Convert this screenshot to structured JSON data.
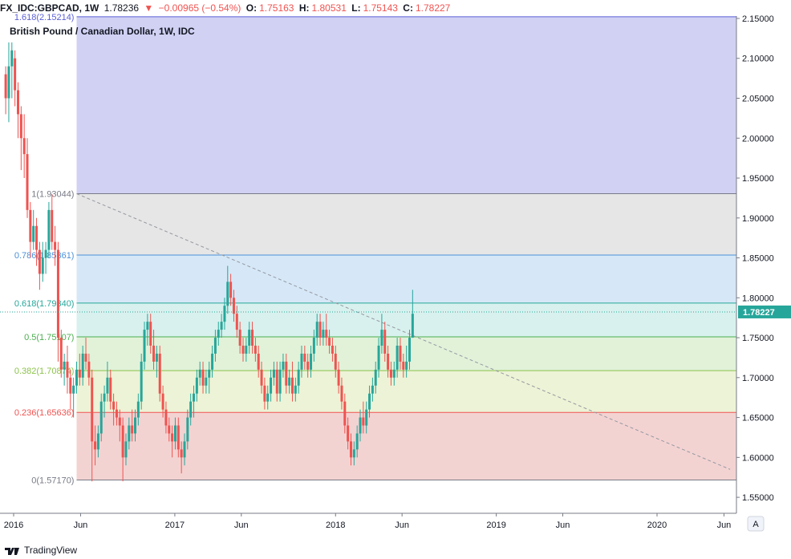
{
  "header": {
    "symbol": "FX_IDC:GBPCAD, 1W",
    "last": "1.78236",
    "change": "−0.00965 (−0.54%)",
    "o_label": "O:",
    "o_value": "1.75163",
    "h_label": "H:",
    "h_value": "1.80531",
    "l_label": "L:",
    "l_value": "1.75143",
    "c_label": "C:",
    "c_value": "1.78227",
    "down_arrow": "▼"
  },
  "footer": {
    "brand": "TradingView",
    "brand_icon": "tradingview-logo-icon"
  },
  "scale_button": "A",
  "colors": {
    "up": "#26a69a",
    "down": "#ef5350",
    "zone_top": "#d1d1f4",
    "zone_1": "#e6e6e6",
    "zone_786": "#d6e8f7",
    "zone_618": "#d8f1ee",
    "zone_5": "#e1f2d9",
    "zone_382": "#edf3d6",
    "zone_236": "#f3d3d2",
    "price_tag": "#26a69a"
  },
  "chart_data": {
    "type": "candlestick",
    "title": "British Pound / Canadian Dollar, 1W, IDC",
    "y_axis": {
      "ticks": [
        "2.15000",
        "2.10000",
        "2.05000",
        "2.00000",
        "1.95000",
        "1.90000",
        "1.85000",
        "1.80000",
        "1.75000",
        "1.70000",
        "1.65000",
        "1.60000",
        "1.55000"
      ],
      "range": [
        1.53,
        2.153
      ]
    },
    "x_axis": {
      "ticks": [
        {
          "label": "2016",
          "date": "2016-01-01"
        },
        {
          "label": "Jun",
          "date": "2016-06-01"
        },
        {
          "label": "2017",
          "date": "2017-01-01"
        },
        {
          "label": "Jun",
          "date": "2017-06-01"
        },
        {
          "label": "2018",
          "date": "2018-01-01"
        },
        {
          "label": "Jun",
          "date": "2018-06-01"
        },
        {
          "label": "2019",
          "date": "2019-01-01"
        },
        {
          "label": "Jun",
          "date": "2019-06-01"
        },
        {
          "label": "2020",
          "date": "2020-01-01"
        },
        {
          "label": "Jun",
          "date": "2020-06-01"
        }
      ]
    },
    "current_price": {
      "value": 1.78227,
      "label": "1.78227"
    },
    "fibonacci": {
      "start_date": "2016-05-23",
      "levels": [
        {
          "ratio": "1.618",
          "value": 2.15214,
          "label": "1.618(2.15214)",
          "color": "#5b5fd6"
        },
        {
          "ratio": "1",
          "value": 1.93044,
          "label": "1(1.93044)",
          "color": "#787b86"
        },
        {
          "ratio": "0.786",
          "value": 1.85361,
          "label": "0.786(1.85361)",
          "color": "#4a90d9"
        },
        {
          "ratio": "0.618",
          "value": 1.7934,
          "label": "0.618(1.79340)",
          "color": "#26a69a"
        },
        {
          "ratio": "0.5",
          "value": 1.75107,
          "label": "0.5(1.75107)",
          "color": "#4caf50"
        },
        {
          "ratio": "0.382",
          "value": 1.70874,
          "label": "0.382(1.70874)",
          "color": "#8bc34a"
        },
        {
          "ratio": "0.236",
          "value": 1.65636,
          "label": "0.236(1.65636)",
          "color": "#ef5350"
        },
        {
          "ratio": "0",
          "value": 1.5717,
          "label": "0(1.57170)",
          "color": "#787b86"
        }
      ],
      "trend_line": {
        "from": {
          "date": "2016-05-23",
          "value": 1.93044
        },
        "to": {
          "date": "2020-06-15",
          "value": 1.585
        }
      }
    },
    "candles": [
      [
        2.08,
        2.09,
        2.03,
        2.05
      ],
      [
        2.05,
        2.12,
        2.02,
        2.09
      ],
      [
        2.09,
        2.12,
        2.05,
        2.11
      ],
      [
        2.1,
        2.11,
        2.04,
        2.06
      ],
      [
        2.06,
        2.07,
        2.0,
        2.03
      ],
      [
        2.03,
        2.04,
        1.96,
        2.0
      ],
      [
        2.0,
        2.03,
        1.95,
        1.98
      ],
      [
        1.98,
        2.0,
        1.9,
        1.91
      ],
      [
        1.91,
        1.92,
        1.85,
        1.87
      ],
      [
        1.87,
        1.91,
        1.86,
        1.89
      ],
      [
        1.89,
        1.9,
        1.84,
        1.86
      ],
      [
        1.86,
        1.87,
        1.81,
        1.83
      ],
      [
        1.83,
        1.87,
        1.82,
        1.85
      ],
      [
        1.85,
        1.87,
        1.83,
        1.86
      ],
      [
        1.86,
        1.92,
        1.85,
        1.91
      ],
      [
        1.91,
        1.93,
        1.86,
        1.87
      ],
      [
        1.87,
        1.89,
        1.84,
        1.86
      ],
      [
        1.86,
        1.87,
        1.72,
        1.75
      ],
      [
        1.75,
        1.76,
        1.7,
        1.71
      ],
      [
        1.71,
        1.73,
        1.69,
        1.72
      ],
      [
        1.72,
        1.74,
        1.68,
        1.7
      ],
      [
        1.7,
        1.71,
        1.66,
        1.68
      ],
      [
        1.68,
        1.7,
        1.65,
        1.69
      ],
      [
        1.69,
        1.72,
        1.68,
        1.71
      ],
      [
        1.71,
        1.73,
        1.69,
        1.7
      ],
      [
        1.7,
        1.74,
        1.69,
        1.73
      ],
      [
        1.73,
        1.75,
        1.71,
        1.72
      ],
      [
        1.72,
        1.73,
        1.69,
        1.7
      ],
      [
        1.7,
        1.71,
        1.57,
        1.62
      ],
      [
        1.62,
        1.64,
        1.59,
        1.61
      ],
      [
        1.61,
        1.64,
        1.6,
        1.63
      ],
      [
        1.63,
        1.68,
        1.62,
        1.67
      ],
      [
        1.67,
        1.69,
        1.65,
        1.68
      ],
      [
        1.68,
        1.72,
        1.67,
        1.7
      ],
      [
        1.7,
        1.71,
        1.66,
        1.67
      ],
      [
        1.67,
        1.68,
        1.64,
        1.66
      ],
      [
        1.66,
        1.67,
        1.64,
        1.65
      ],
      [
        1.65,
        1.66,
        1.62,
        1.64
      ],
      [
        1.64,
        1.65,
        1.57,
        1.6
      ],
      [
        1.6,
        1.63,
        1.59,
        1.62
      ],
      [
        1.62,
        1.65,
        1.61,
        1.64
      ],
      [
        1.64,
        1.66,
        1.62,
        1.63
      ],
      [
        1.63,
        1.66,
        1.62,
        1.65
      ],
      [
        1.65,
        1.68,
        1.64,
        1.67
      ],
      [
        1.67,
        1.73,
        1.66,
        1.72
      ],
      [
        1.72,
        1.77,
        1.71,
        1.76
      ],
      [
        1.76,
        1.78,
        1.74,
        1.77
      ],
      [
        1.77,
        1.78,
        1.73,
        1.74
      ],
      [
        1.74,
        1.76,
        1.71,
        1.72
      ],
      [
        1.72,
        1.74,
        1.7,
        1.73
      ],
      [
        1.73,
        1.74,
        1.67,
        1.68
      ],
      [
        1.68,
        1.69,
        1.65,
        1.66
      ],
      [
        1.66,
        1.67,
        1.63,
        1.64
      ],
      [
        1.64,
        1.65,
        1.62,
        1.63
      ],
      [
        1.63,
        1.64,
        1.6,
        1.62
      ],
      [
        1.62,
        1.65,
        1.61,
        1.64
      ],
      [
        1.64,
        1.65,
        1.6,
        1.61
      ],
      [
        1.61,
        1.62,
        1.58,
        1.6
      ],
      [
        1.6,
        1.63,
        1.59,
        1.62
      ],
      [
        1.62,
        1.66,
        1.61,
        1.65
      ],
      [
        1.65,
        1.68,
        1.64,
        1.67
      ],
      [
        1.67,
        1.69,
        1.65,
        1.68
      ],
      [
        1.68,
        1.71,
        1.67,
        1.7
      ],
      [
        1.7,
        1.72,
        1.69,
        1.71
      ],
      [
        1.71,
        1.72,
        1.68,
        1.69
      ],
      [
        1.69,
        1.71,
        1.68,
        1.7
      ],
      [
        1.7,
        1.72,
        1.68,
        1.71
      ],
      [
        1.71,
        1.74,
        1.7,
        1.73
      ],
      [
        1.73,
        1.76,
        1.72,
        1.75
      ],
      [
        1.75,
        1.77,
        1.74,
        1.76
      ],
      [
        1.76,
        1.78,
        1.75,
        1.77
      ],
      [
        1.77,
        1.8,
        1.76,
        1.79
      ],
      [
        1.79,
        1.84,
        1.78,
        1.82
      ],
      [
        1.82,
        1.83,
        1.79,
        1.8
      ],
      [
        1.8,
        1.81,
        1.77,
        1.78
      ],
      [
        1.78,
        1.79,
        1.75,
        1.76
      ],
      [
        1.76,
        1.77,
        1.73,
        1.74
      ],
      [
        1.74,
        1.75,
        1.72,
        1.73
      ],
      [
        1.73,
        1.75,
        1.72,
        1.74
      ],
      [
        1.74,
        1.77,
        1.73,
        1.76
      ],
      [
        1.76,
        1.77,
        1.73,
        1.74
      ],
      [
        1.74,
        1.75,
        1.72,
        1.73
      ],
      [
        1.73,
        1.74,
        1.7,
        1.71
      ],
      [
        1.71,
        1.72,
        1.68,
        1.69
      ],
      [
        1.69,
        1.7,
        1.66,
        1.67
      ],
      [
        1.67,
        1.69,
        1.66,
        1.68
      ],
      [
        1.68,
        1.71,
        1.67,
        1.7
      ],
      [
        1.7,
        1.72,
        1.69,
        1.71
      ],
      [
        1.71,
        1.72,
        1.67,
        1.68
      ],
      [
        1.68,
        1.72,
        1.67,
        1.71
      ],
      [
        1.71,
        1.73,
        1.7,
        1.72
      ],
      [
        1.72,
        1.73,
        1.68,
        1.69
      ],
      [
        1.69,
        1.71,
        1.68,
        1.7
      ],
      [
        1.7,
        1.72,
        1.67,
        1.68
      ],
      [
        1.68,
        1.7,
        1.67,
        1.69
      ],
      [
        1.69,
        1.72,
        1.68,
        1.71
      ],
      [
        1.71,
        1.74,
        1.7,
        1.73
      ],
      [
        1.73,
        1.74,
        1.71,
        1.72
      ],
      [
        1.72,
        1.73,
        1.7,
        1.71
      ],
      [
        1.71,
        1.74,
        1.7,
        1.73
      ],
      [
        1.73,
        1.76,
        1.72,
        1.75
      ],
      [
        1.75,
        1.78,
        1.74,
        1.77
      ],
      [
        1.77,
        1.78,
        1.74,
        1.75
      ],
      [
        1.75,
        1.77,
        1.74,
        1.76
      ],
      [
        1.76,
        1.78,
        1.74,
        1.75
      ],
      [
        1.75,
        1.76,
        1.73,
        1.74
      ],
      [
        1.74,
        1.75,
        1.72,
        1.73
      ],
      [
        1.73,
        1.74,
        1.7,
        1.71
      ],
      [
        1.71,
        1.72,
        1.68,
        1.69
      ],
      [
        1.69,
        1.7,
        1.66,
        1.67
      ],
      [
        1.67,
        1.68,
        1.63,
        1.64
      ],
      [
        1.64,
        1.65,
        1.61,
        1.62
      ],
      [
        1.62,
        1.63,
        1.59,
        1.6
      ],
      [
        1.6,
        1.62,
        1.59,
        1.61
      ],
      [
        1.61,
        1.64,
        1.6,
        1.63
      ],
      [
        1.63,
        1.66,
        1.62,
        1.65
      ],
      [
        1.65,
        1.67,
        1.63,
        1.64
      ],
      [
        1.64,
        1.67,
        1.63,
        1.66
      ],
      [
        1.66,
        1.69,
        1.65,
        1.68
      ],
      [
        1.68,
        1.7,
        1.67,
        1.69
      ],
      [
        1.69,
        1.72,
        1.68,
        1.71
      ],
      [
        1.71,
        1.75,
        1.7,
        1.74
      ],
      [
        1.74,
        1.78,
        1.73,
        1.76
      ],
      [
        1.76,
        1.77,
        1.72,
        1.73
      ],
      [
        1.73,
        1.74,
        1.7,
        1.71
      ],
      [
        1.71,
        1.72,
        1.69,
        1.7
      ],
      [
        1.7,
        1.72,
        1.69,
        1.71
      ],
      [
        1.71,
        1.75,
        1.7,
        1.74
      ],
      [
        1.74,
        1.75,
        1.71,
        1.72
      ],
      [
        1.72,
        1.73,
        1.7,
        1.71
      ],
      [
        1.71,
        1.74,
        1.7,
        1.72
      ],
      [
        1.72,
        1.76,
        1.71,
        1.75
      ],
      [
        1.75,
        1.81,
        1.75,
        1.78
      ]
    ]
  }
}
